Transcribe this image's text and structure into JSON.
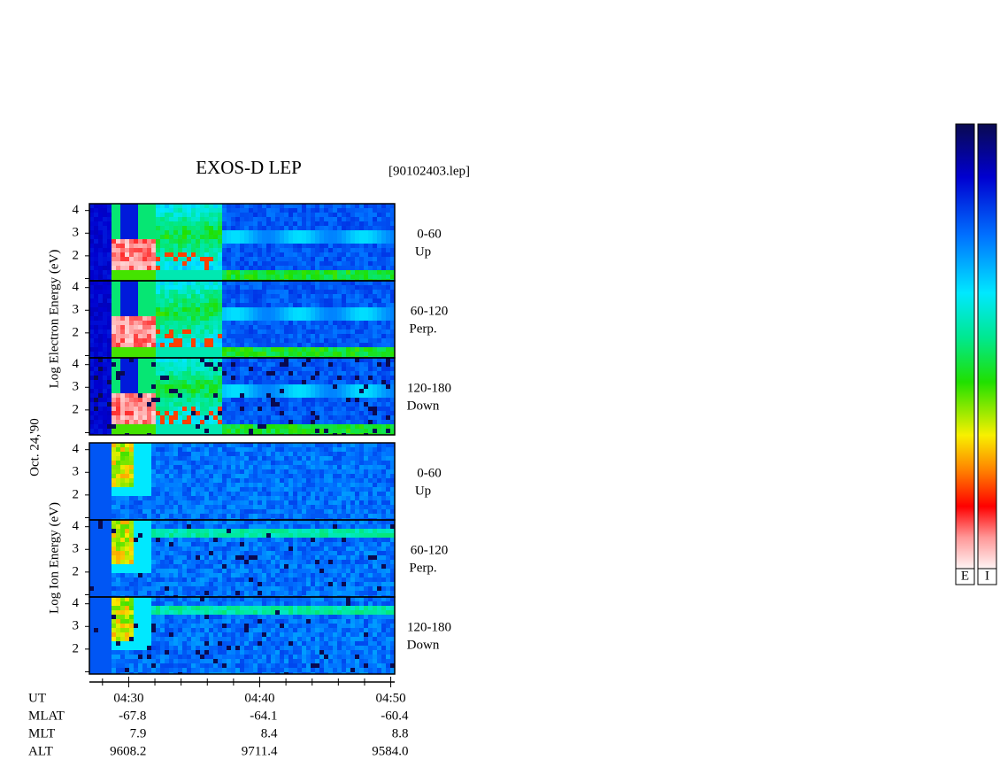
{
  "title": "EXOS-D LEP",
  "file": "[90102403.lep]",
  "date": "Oct. 24,'90",
  "groups": [
    {
      "label": "Log Electron Energy (eV)",
      "panels": [
        {
          "range": "0-60",
          "direction": "Up"
        },
        {
          "range": "60-120",
          "direction": "Perp."
        },
        {
          "range": "120-180",
          "direction": "Down"
        }
      ]
    },
    {
      "label": "Log Ion Energy (eV)",
      "panels": [
        {
          "range": "0-60",
          "direction": "Up"
        },
        {
          "range": "60-120",
          "direction": "Perp."
        },
        {
          "range": "120-180",
          "direction": "Down"
        }
      ]
    }
  ],
  "axes": {
    "ylim": [
      0.9,
      4.3
    ],
    "yticks": [
      2,
      3,
      4
    ],
    "yminor": [
      1
    ],
    "xlim": [
      27,
      50.3
    ],
    "xticks": [
      {
        "value": 30,
        "label": "04:30"
      },
      {
        "value": 40,
        "label": "04:40"
      },
      {
        "value": 50,
        "label": "04:50"
      }
    ],
    "xminor": [
      28,
      32,
      34,
      36,
      38,
      42,
      44,
      46,
      48
    ]
  },
  "ut_label": "UT",
  "ephemeris": [
    {
      "name": "MLAT",
      "values": [
        "-67.8",
        "-64.1",
        "-60.4"
      ]
    },
    {
      "name": "MLT",
      "values": [
        "7.9",
        "8.4",
        "8.8"
      ]
    },
    {
      "name": "ALT",
      "values": [
        "9608.2",
        "9711.4",
        "9584.0"
      ]
    }
  ],
  "colorbars": [
    {
      "label": "E"
    },
    {
      "label": "I"
    }
  ]
}
